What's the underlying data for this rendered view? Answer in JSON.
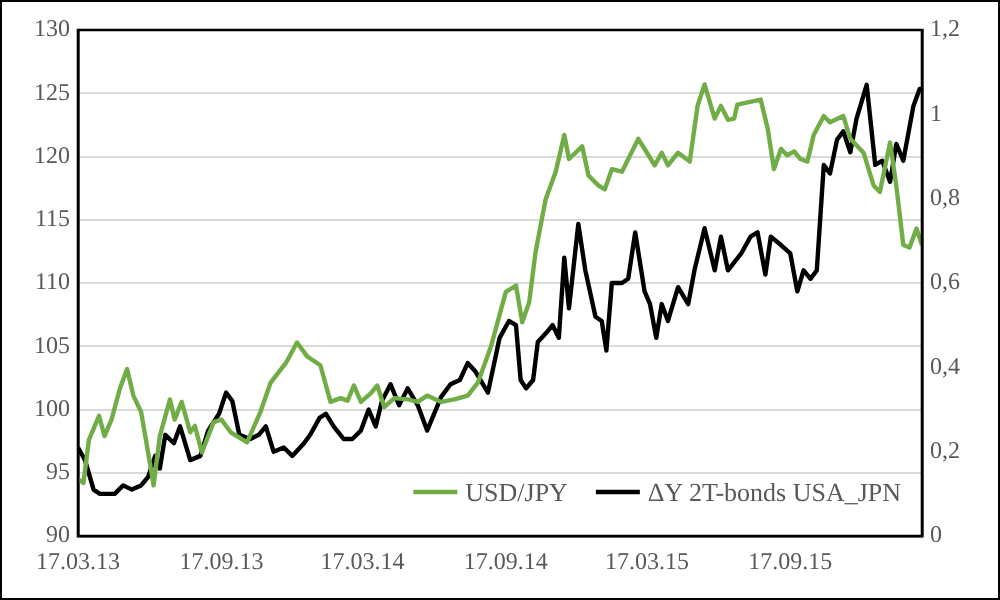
{
  "chart_data": {
    "type": "line",
    "legend": "bottom right",
    "grid": "y",
    "marker": "none",
    "line_style": "solid",
    "xlim": [
      "2013-03-17",
      "2016-03-04"
    ],
    "xticks": [
      {
        "value": "2013-03-17",
        "label": "17.03.13"
      },
      {
        "value": "2013-09-17",
        "label": "17.09.13"
      },
      {
        "value": "2014-03-17",
        "label": "17.03.14"
      },
      {
        "value": "2014-09-17",
        "label": "17.09.14"
      },
      {
        "value": "2015-03-17",
        "label": "17.03.15"
      },
      {
        "value": "2015-09-17",
        "label": "17.09.15"
      }
    ],
    "ylim": [
      90,
      130
    ],
    "yticks": [
      90,
      95,
      100,
      105,
      110,
      115,
      120,
      125,
      130
    ],
    "y2lim": [
      0,
      1.2
    ],
    "y2ticks": [
      0,
      {
        "value": 0.2,
        "label": "0,2"
      },
      {
        "value": 0.4,
        "label": "0,4"
      },
      {
        "value": 0.6,
        "label": "0,6"
      },
      {
        "value": 0.8,
        "label": "0,8"
      },
      1,
      {
        "value": 1.2,
        "label": "1,2"
      }
    ],
    "series": [
      {
        "name": "USD/JPY",
        "color": "#70ad47",
        "x": [
          "2013-03-17",
          "2013-03-24",
          "2013-03-31",
          "2013-04-13",
          "2013-04-20",
          "2013-04-29",
          "2013-05-10",
          "2013-05-19",
          "2013-05-27",
          "2013-06-06",
          "2013-06-15",
          "2013-06-22",
          "2013-06-30",
          "2013-07-13",
          "2013-07-19",
          "2013-07-28",
          "2013-08-08",
          "2013-08-14",
          "2013-08-23",
          "2013-09-07",
          "2013-09-17",
          "2013-09-29",
          "2013-10-20",
          "2013-11-06",
          "2013-11-19",
          "2013-12-09",
          "2013-12-23",
          "2014-01-05",
          "2014-01-22",
          "2014-02-04",
          "2014-02-17",
          "2014-02-26",
          "2014-03-06",
          "2014-03-15",
          "2014-03-28",
          "2014-04-05",
          "2014-04-14",
          "2014-04-27",
          "2014-05-14",
          "2014-05-27",
          "2014-06-08",
          "2014-06-26",
          "2014-07-13",
          "2014-07-30",
          "2014-08-12",
          "2014-08-29",
          "2014-09-17",
          "2014-09-30",
          "2014-10-08",
          "2014-10-17",
          "2014-10-25",
          "2014-11-07",
          "2014-11-20",
          "2014-12-01",
          "2014-12-07",
          "2014-12-24",
          "2015-01-01",
          "2015-01-14",
          "2015-01-22",
          "2015-01-31",
          "2015-02-13",
          "2015-03-06",
          "2015-03-19",
          "2015-03-27",
          "2015-04-05",
          "2015-04-13",
          "2015-04-26",
          "2015-05-11",
          "2015-05-21",
          "2015-05-30",
          "2015-06-12",
          "2015-06-20",
          "2015-06-29",
          "2015-07-07",
          "2015-07-11",
          "2015-08-10",
          "2015-08-19",
          "2015-08-27",
          "2015-09-05",
          "2015-09-13",
          "2015-09-22",
          "2015-09-30",
          "2015-10-09",
          "2015-10-17",
          "2015-10-30",
          "2015-11-07",
          "2015-11-24",
          "2015-12-03",
          "2015-12-20",
          "2016-01-02",
          "2016-01-10",
          "2016-01-23",
          "2016-01-31",
          "2016-02-09",
          "2016-02-17",
          "2016-02-26",
          "2016-03-04"
        ],
        "values": [
          94.5,
          94.2,
          97.6,
          99.5,
          97.9,
          99.2,
          101.7,
          103.2,
          101.1,
          99.8,
          96.6,
          94.0,
          97.9,
          100.8,
          99.2,
          100.6,
          98.2,
          98.7,
          96.6,
          99.0,
          99.2,
          98.2,
          97.4,
          99.8,
          102.1,
          103.7,
          105.3,
          104.2,
          103.5,
          100.6,
          100.9,
          100.7,
          101.9,
          100.6,
          101.3,
          101.9,
          100.2,
          100.9,
          100.8,
          100.6,
          101.1,
          100.6,
          100.8,
          101.1,
          102.1,
          105.0,
          109.3,
          109.8,
          106.9,
          108.5,
          112.4,
          116.6,
          118.8,
          121.7,
          119.8,
          120.8,
          118.5,
          117.7,
          117.4,
          119.0,
          118.8,
          121.4,
          120.1,
          119.3,
          120.3,
          119.3,
          120.3,
          119.6,
          124.0,
          125.7,
          123.0,
          124.0,
          122.9,
          123.0,
          124.1,
          124.5,
          122.2,
          119.0,
          120.6,
          120.1,
          120.4,
          119.8,
          119.6,
          121.7,
          123.2,
          122.7,
          123.2,
          121.4,
          120.3,
          117.7,
          117.2,
          121.1,
          117.7,
          113.0,
          112.8,
          114.3,
          113.0
        ]
      },
      {
        "name": "ΔY 2T-bonds USA_JPN",
        "color": "#000000",
        "axis": "y2",
        "x": [
          "2013-03-17",
          "2013-03-26",
          "2013-04-06",
          "2013-04-14",
          "2013-04-23",
          "2013-05-03",
          "2013-05-14",
          "2013-05-25",
          "2013-06-06",
          "2013-06-15",
          "2013-06-24",
          "2013-06-30",
          "2013-07-07",
          "2013-07-18",
          "2013-07-26",
          "2013-08-08",
          "2013-08-21",
          "2013-08-31",
          "2013-09-14",
          "2013-09-23",
          "2013-10-01",
          "2013-10-10",
          "2013-10-24",
          "2013-11-04",
          "2013-11-13",
          "2013-11-23",
          "2013-12-06",
          "2013-12-17",
          "2014-01-01",
          "2014-01-09",
          "2014-01-21",
          "2014-01-29",
          "2014-02-08",
          "2014-02-21",
          "2014-03-04",
          "2014-03-15",
          "2014-03-25",
          "2014-04-03",
          "2014-04-11",
          "2014-04-22",
          "2014-05-03",
          "2014-05-14",
          "2014-05-27",
          "2014-06-08",
          "2014-06-26",
          "2014-07-08",
          "2014-07-20",
          "2014-07-30",
          "2014-08-09",
          "2014-08-25",
          "2014-09-09",
          "2014-09-21",
          "2014-09-30",
          "2014-10-06",
          "2014-10-13",
          "2014-10-22",
          "2014-10-28",
          "2014-11-07",
          "2014-11-16",
          "2014-11-24",
          "2014-12-01",
          "2014-12-07",
          "2014-12-19",
          "2014-12-28",
          "2015-01-10",
          "2015-01-18",
          "2015-01-24",
          "2015-01-31",
          "2015-02-13",
          "2015-02-21",
          "2015-03-02",
          "2015-03-14",
          "2015-03-21",
          "2015-03-29",
          "2015-04-05",
          "2015-04-13",
          "2015-04-26",
          "2015-05-09",
          "2015-05-17",
          "2015-05-30",
          "2015-06-12",
          "2015-06-20",
          "2015-06-29",
          "2015-07-16",
          "2015-07-28",
          "2015-08-06",
          "2015-08-16",
          "2015-08-23",
          "2015-09-05",
          "2015-09-17",
          "2015-09-26",
          "2015-10-04",
          "2015-10-13",
          "2015-10-21",
          "2015-10-30",
          "2015-11-07",
          "2015-11-16",
          "2015-11-24",
          "2015-12-03",
          "2015-12-11",
          "2015-12-24",
          "2016-01-04",
          "2016-01-13",
          "2016-01-23",
          "2016-01-31",
          "2016-02-09",
          "2016-02-22",
          "2016-03-01",
          "2016-03-04"
        ],
        "values": [
          0.21,
          0.18,
          0.11,
          0.1,
          0.1,
          0.1,
          0.12,
          0.11,
          0.12,
          0.14,
          0.19,
          0.16,
          0.24,
          0.22,
          0.26,
          0.18,
          0.19,
          0.25,
          0.29,
          0.34,
          0.32,
          0.24,
          0.23,
          0.24,
          0.26,
          0.2,
          0.21,
          0.19,
          0.22,
          0.24,
          0.28,
          0.29,
          0.26,
          0.23,
          0.23,
          0.25,
          0.3,
          0.26,
          0.32,
          0.36,
          0.31,
          0.35,
          0.31,
          0.25,
          0.33,
          0.36,
          0.37,
          0.41,
          0.39,
          0.34,
          0.47,
          0.51,
          0.5,
          0.37,
          0.35,
          0.37,
          0.46,
          0.48,
          0.5,
          0.47,
          0.66,
          0.54,
          0.74,
          0.63,
          0.52,
          0.51,
          0.44,
          0.6,
          0.6,
          0.61,
          0.72,
          0.58,
          0.55,
          0.47,
          0.55,
          0.51,
          0.59,
          0.55,
          0.63,
          0.73,
          0.63,
          0.71,
          0.63,
          0.67,
          0.71,
          0.72,
          0.62,
          0.71,
          0.69,
          0.67,
          0.58,
          0.63,
          0.61,
          0.63,
          0.88,
          0.86,
          0.94,
          0.96,
          0.91,
          0.99,
          1.07,
          0.88,
          0.89,
          0.84,
          0.93,
          0.89,
          1.02,
          1.06,
          1.06
        ]
      }
    ]
  }
}
